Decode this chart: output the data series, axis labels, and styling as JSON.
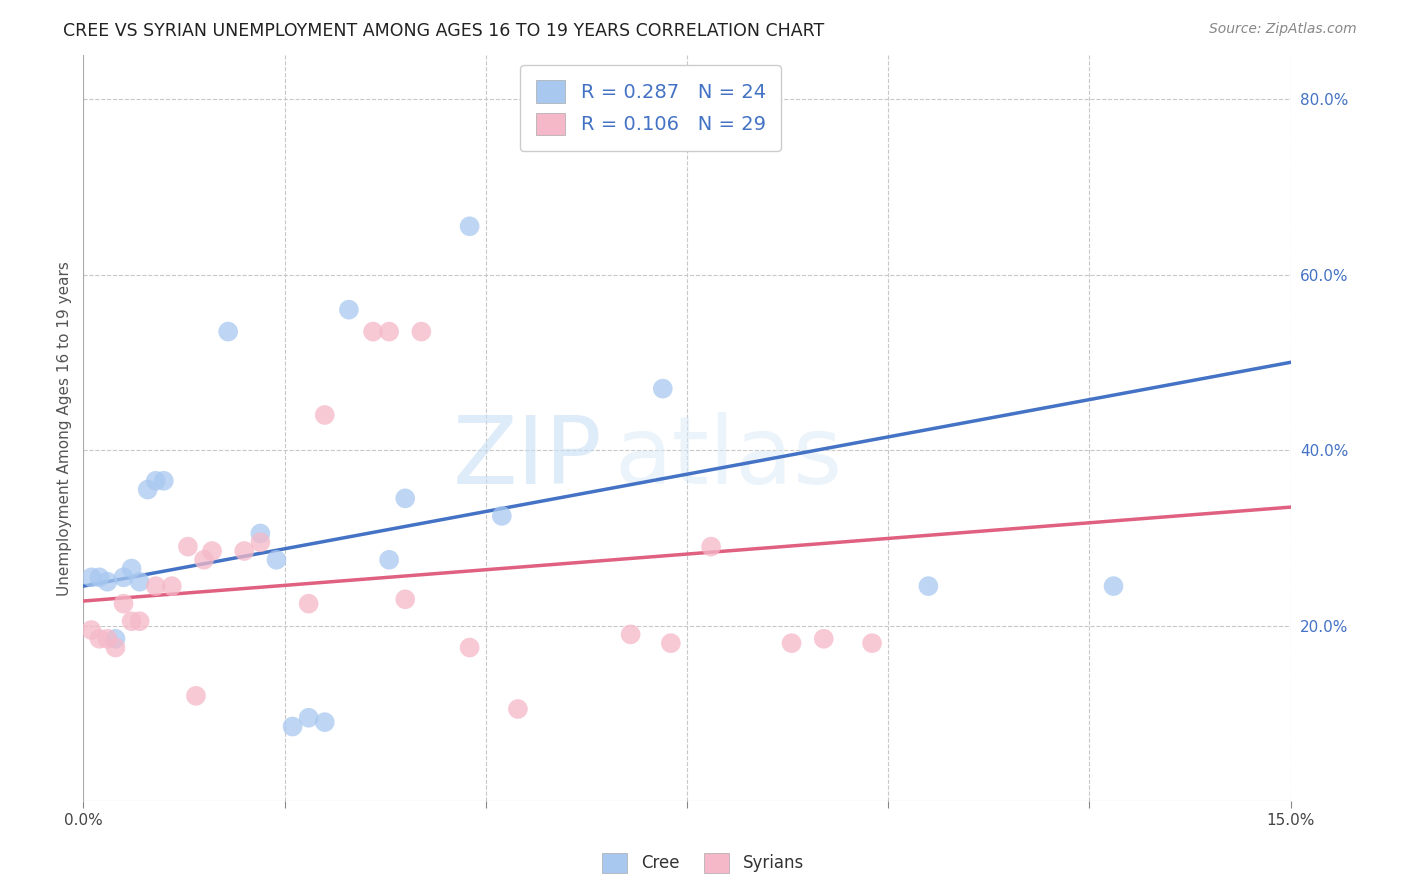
{
  "title": "CREE VS SYRIAN UNEMPLOYMENT AMONG AGES 16 TO 19 YEARS CORRELATION CHART",
  "source": "Source: ZipAtlas.com",
  "xlabel": "",
  "ylabel": "Unemployment Among Ages 16 to 19 years",
  "xlim": [
    0.0,
    0.15
  ],
  "ylim": [
    0.0,
    0.85
  ],
  "xticks": [
    0.0,
    0.025,
    0.05,
    0.075,
    0.1,
    0.125,
    0.15
  ],
  "xticklabels": [
    "0.0%",
    "",
    "",
    "",
    "",
    "",
    "15.0%"
  ],
  "yticks_right": [
    0.2,
    0.4,
    0.6,
    0.8
  ],
  "yticklabels_right": [
    "20.0%",
    "40.0%",
    "60.0%",
    "80.0%"
  ],
  "cree_color": "#a8c8f0",
  "syrian_color": "#f5b8c8",
  "line_cree_color": "#4472c4",
  "line_syrian_color": "#e06080",
  "cree_R": 0.287,
  "cree_N": 24,
  "syrian_R": 0.106,
  "syrian_N": 29,
  "cree_line_x0": 0.0,
  "cree_line_y0": 0.245,
  "cree_line_x1": 0.15,
  "cree_line_y1": 0.5,
  "syrian_line_x0": 0.0,
  "syrian_line_y0": 0.228,
  "syrian_line_x1": 0.15,
  "syrian_line_y1": 0.335,
  "cree_points": [
    [
      0.001,
      0.255
    ],
    [
      0.002,
      0.255
    ],
    [
      0.003,
      0.25
    ],
    [
      0.004,
      0.185
    ],
    [
      0.005,
      0.255
    ],
    [
      0.006,
      0.265
    ],
    [
      0.007,
      0.25
    ],
    [
      0.008,
      0.355
    ],
    [
      0.009,
      0.365
    ],
    [
      0.01,
      0.365
    ],
    [
      0.018,
      0.535
    ],
    [
      0.022,
      0.305
    ],
    [
      0.024,
      0.275
    ],
    [
      0.026,
      0.085
    ],
    [
      0.028,
      0.095
    ],
    [
      0.033,
      0.56
    ],
    [
      0.038,
      0.275
    ],
    [
      0.04,
      0.345
    ],
    [
      0.048,
      0.655
    ],
    [
      0.052,
      0.325
    ],
    [
      0.072,
      0.47
    ],
    [
      0.105,
      0.245
    ],
    [
      0.128,
      0.245
    ],
    [
      0.03,
      0.09
    ]
  ],
  "syrian_points": [
    [
      0.001,
      0.195
    ],
    [
      0.002,
      0.185
    ],
    [
      0.003,
      0.185
    ],
    [
      0.004,
      0.175
    ],
    [
      0.005,
      0.225
    ],
    [
      0.006,
      0.205
    ],
    [
      0.007,
      0.205
    ],
    [
      0.009,
      0.245
    ],
    [
      0.011,
      0.245
    ],
    [
      0.013,
      0.29
    ],
    [
      0.015,
      0.275
    ],
    [
      0.016,
      0.285
    ],
    [
      0.02,
      0.285
    ],
    [
      0.022,
      0.295
    ],
    [
      0.028,
      0.225
    ],
    [
      0.03,
      0.44
    ],
    [
      0.036,
      0.535
    ],
    [
      0.038,
      0.535
    ],
    [
      0.042,
      0.535
    ],
    [
      0.04,
      0.23
    ],
    [
      0.048,
      0.175
    ],
    [
      0.068,
      0.19
    ],
    [
      0.073,
      0.18
    ],
    [
      0.078,
      0.29
    ],
    [
      0.088,
      0.18
    ],
    [
      0.092,
      0.185
    ],
    [
      0.098,
      0.18
    ],
    [
      0.054,
      0.105
    ],
    [
      0.014,
      0.12
    ]
  ],
  "watermark_text": "ZIP",
  "watermark_text2": "atlas",
  "background_color": "#ffffff",
  "grid_color": "#c8c8c8"
}
